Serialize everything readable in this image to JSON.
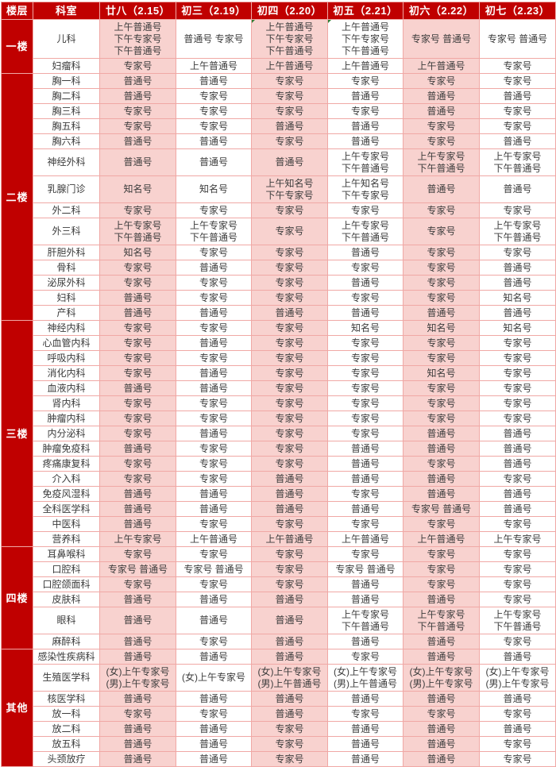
{
  "colors": {
    "header_bg": "#c00000",
    "header_text": "#ffffff",
    "pink_cell": "#f8d2cf",
    "white_cell": "#ffffff",
    "grid_line": "#f0a8a5",
    "cell_text": "#3c3c3c"
  },
  "header": {
    "floor_label": "楼层",
    "dept_label": "科室",
    "dates": [
      "廿八（2.15）",
      "初三（2.19）",
      "初四（2.20）",
      "初五（2.21）",
      "初六（2.22）",
      "初七（2.23）"
    ]
  },
  "floors": [
    {
      "name": "一楼",
      "rows": [
        {
          "dept": "儿科",
          "flag_cols": [
            2,
            3
          ],
          "cells": [
            "上午普通号\n下午专家号\n下午普通号",
            "普通号 专家号",
            "上午普通号\n下午专家号\n下午普通号",
            "上午普通号\n下午专家号\n下午普通号",
            "专家号 普通号",
            "专家号 普通号"
          ]
        },
        {
          "dept": "妇瘤科",
          "cells": [
            "专家号",
            "上午普通号",
            "上午普通号",
            "上午普通号",
            "上午普通号",
            "专家号"
          ]
        }
      ]
    },
    {
      "name": "二楼",
      "rows": [
        {
          "dept": "胸一科",
          "cells": [
            "普通号",
            "普通号",
            "专家号",
            "专家号",
            "专家号",
            "专家号"
          ]
        },
        {
          "dept": "胸二科",
          "cells": [
            "普通号",
            "专家号",
            "专家号",
            "普通号",
            "普通号",
            "普通号"
          ]
        },
        {
          "dept": "胸三科",
          "cells": [
            "专家号",
            "专家号",
            "专家号",
            "专家号",
            "普通号",
            "专家号"
          ]
        },
        {
          "dept": "胸五科",
          "cells": [
            "专家号",
            "专家号",
            "普通号",
            "普通号",
            "专家号",
            "专家号"
          ]
        },
        {
          "dept": "胸六科",
          "cells": [
            "普通号",
            "普通号",
            "专家号",
            "普通号",
            "专家号",
            "普通号"
          ]
        },
        {
          "dept": "神经外科",
          "cells": [
            "普通号",
            "普通号",
            "普通号",
            "上午专家号\n下午普通号",
            "上午专家号\n下午普通号",
            "上午专家号\n下午普通号"
          ]
        },
        {
          "dept": "乳腺门诊",
          "cells": [
            "知名号",
            "知名号",
            "上午知名号\n下午专家号",
            "上午知名号\n下午专家号",
            "普通号",
            "普通号"
          ]
        },
        {
          "dept": "外二科",
          "cells": [
            "专家号",
            "专家号",
            "专家号",
            "专家号",
            "专家号",
            "专家号"
          ]
        },
        {
          "dept": "外三科",
          "cells": [
            "上午专家号\n下午普通号",
            "上午专家号\n下午普通号",
            "专家号",
            "上午专家号\n下午普通号",
            "专家号",
            "上午专家号\n下午普通号"
          ]
        },
        {
          "dept": "肝胆外科",
          "cells": [
            "知名号",
            "专家号",
            "专家号",
            "普通号",
            "专家号",
            "专家号"
          ]
        },
        {
          "dept": "骨科",
          "cells": [
            "专家号",
            "普通号",
            "专家号",
            "专家号",
            "专家号",
            "普通号"
          ]
        },
        {
          "dept": "泌尿外科",
          "cells": [
            "专家号",
            "专家号",
            "专家号",
            "普通号",
            "专家号",
            "普通号"
          ]
        },
        {
          "dept": "妇科",
          "cells": [
            "普通号",
            "专家号",
            "专家号",
            "专家号",
            "专家号",
            "知名号"
          ]
        },
        {
          "dept": "产科",
          "cells": [
            "普通号",
            "普通号",
            "普通号",
            "普通号",
            "普通号",
            "普通号"
          ]
        }
      ]
    },
    {
      "name": "三楼",
      "rows": [
        {
          "dept": "神经内科",
          "cells": [
            "专家号",
            "专家号",
            "专家号",
            "知名号",
            "知名号",
            "知名号"
          ]
        },
        {
          "dept": "心血管内科",
          "cells": [
            "专家号",
            "普通号",
            "专家号",
            "专家号",
            "专家号",
            "专家号"
          ]
        },
        {
          "dept": "呼吸内科",
          "cells": [
            "专家号",
            "专家号",
            "专家号",
            "专家号",
            "专家号",
            "专家号"
          ]
        },
        {
          "dept": "消化内科",
          "cells": [
            "专家号",
            "普通号",
            "专家号",
            "专家号",
            "知名号",
            "专家号"
          ]
        },
        {
          "dept": "血液内科",
          "cells": [
            "普通号",
            "普通号",
            "专家号",
            "专家号",
            "专家号",
            "专家号"
          ]
        },
        {
          "dept": "肾内科",
          "cells": [
            "专家号",
            "专家号",
            "专家号",
            "专家号",
            "专家号",
            "专家号"
          ]
        },
        {
          "dept": "肿瘤内科",
          "cells": [
            "专家号",
            "专家号",
            "专家号",
            "专家号",
            "专家号",
            "专家号"
          ]
        },
        {
          "dept": "内分泌科",
          "cells": [
            "专家号",
            "普通号",
            "专家号",
            "专家号",
            "普通号",
            "普通号"
          ]
        },
        {
          "dept": "肿瘤免疫科",
          "cells": [
            "普通号",
            "专家号",
            "专家号",
            "普通号",
            "普通号",
            "普通号"
          ]
        },
        {
          "dept": "疼痛康复科",
          "cells": [
            "专家号",
            "专家号",
            "专家号",
            "普通号",
            "专家号",
            "普通号"
          ]
        },
        {
          "dept": "介入科",
          "cells": [
            "专家号",
            "专家号",
            "普通号",
            "普通号",
            "普通号",
            "专家号"
          ]
        },
        {
          "dept": "免疫风湿科",
          "cells": [
            "普通号",
            "普通号",
            "普通号",
            "专家号",
            "普通号",
            "普通号"
          ]
        },
        {
          "dept": "全科医学科",
          "cells": [
            "普通号",
            "普通号",
            "普通号",
            "普通号",
            "专家号 普通号",
            "普通号"
          ]
        },
        {
          "dept": "中医科",
          "cells": [
            "普通号",
            "专家号",
            "专家号",
            "专家号",
            "专家号",
            "专家号"
          ]
        },
        {
          "dept": "营养科",
          "cells": [
            "上午专家号",
            "上午普通号",
            "上午普通号",
            "上午普通号",
            "上午普通号",
            "上午专家号"
          ]
        }
      ]
    },
    {
      "name": "四楼",
      "rows": [
        {
          "dept": "耳鼻喉科",
          "cells": [
            "专家号",
            "专家号",
            "专家号",
            "专家号",
            "专家号",
            "专家号"
          ]
        },
        {
          "dept": "口腔科",
          "cells": [
            "专家号 普通号",
            "专家号 普通号",
            "专家号",
            "专家号 普通号",
            "专家号",
            "专家号"
          ]
        },
        {
          "dept": "口腔颌面科",
          "cells": [
            "专家号",
            "专家号",
            "专家号",
            "普通号",
            "专家号",
            "专家号"
          ]
        },
        {
          "dept": "皮肤科",
          "cells": [
            "普通号",
            "普通号",
            "普通号",
            "普通号",
            "普通号",
            "专家号"
          ]
        },
        {
          "dept": "眼科",
          "cells": [
            "普通号",
            "普通号",
            "普通号",
            "上午专家号\n下午普通号",
            "上午专家号\n下午普通号",
            "上午专家号\n下午普通号"
          ]
        },
        {
          "dept": "麻醉科",
          "cells": [
            "普通号",
            "专家号",
            "普通号",
            "普通号",
            "普通号",
            "专家号"
          ]
        }
      ]
    },
    {
      "name": "其他",
      "rows": [
        {
          "dept": "感染性疾病科",
          "cells": [
            "普通号",
            "普通号",
            "普通号",
            "专家号",
            "普通号",
            "普通号"
          ]
        },
        {
          "dept": "生殖医学科",
          "cells": [
            "(女)上午专家号\n(男)上午专家号",
            "(女)上午专家号",
            "(女)上午专家号\n(男)上午普通号",
            "(女)上午专家号\n(男)上午普通号",
            "(女)上午专家号\n(男)上午专家号",
            "(女)上午专家号\n(男)上午专家号"
          ]
        },
        {
          "dept": "核医学科",
          "cells": [
            "普通号",
            "普通号",
            "普通号",
            "普通号",
            "普通号",
            "普通号"
          ]
        },
        {
          "dept": "放一科",
          "cells": [
            "专家号",
            "专家号",
            "普通号",
            "专家号",
            "专家号",
            "专家号"
          ]
        },
        {
          "dept": "放二科",
          "cells": [
            "普通号",
            "普通号",
            "专家号",
            "普通号",
            "普通号",
            "普通号"
          ]
        },
        {
          "dept": "放五科",
          "cells": [
            "普通号",
            "普通号",
            "专家号",
            "普通号",
            "普通号",
            "专家号"
          ]
        },
        {
          "dept": "头颈放疗",
          "cells": [
            "普通号",
            "普通号",
            "专家号",
            "普通号",
            "普通号",
            "专家号"
          ]
        }
      ]
    }
  ]
}
